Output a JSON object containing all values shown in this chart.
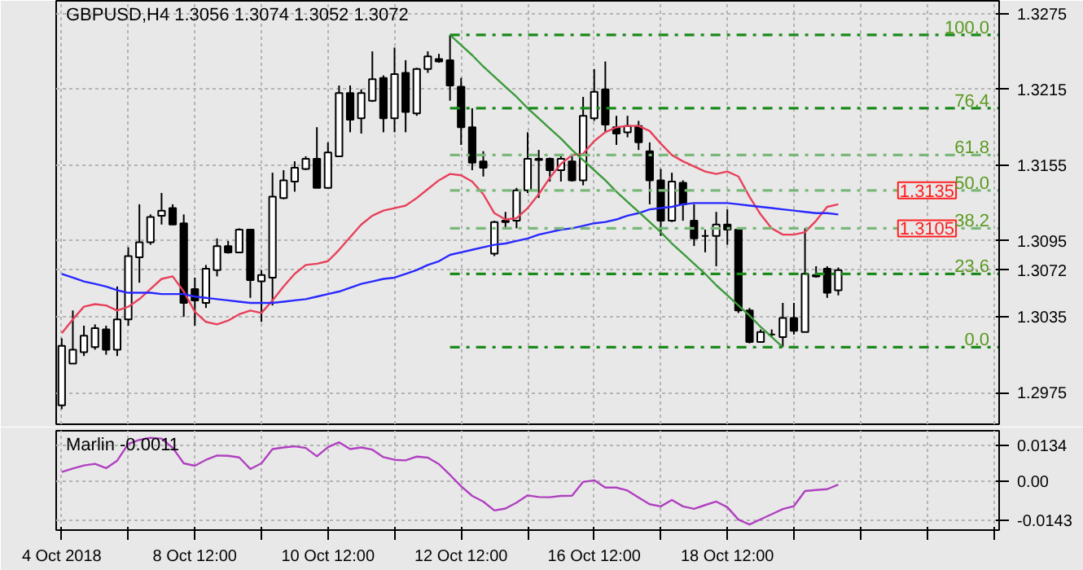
{
  "chart_data": [
    {
      "type": "candlestick",
      "title": "GBPUSD,H4  1.3056 1.3074 1.3052 1.3072",
      "categories": [
        "4 Oct 2018",
        null,
        null,
        null,
        null,
        null,
        null,
        null,
        null,
        null,
        null,
        null,
        "8 Oct 12:00",
        null,
        null,
        null,
        null,
        null,
        null,
        null,
        null,
        null,
        null,
        null,
        "10 Oct 12:00",
        null,
        null,
        null,
        null,
        null,
        null,
        null,
        null,
        null,
        null,
        null,
        "12 Oct 12:00",
        null,
        null,
        null,
        null,
        null,
        null,
        null,
        null,
        null,
        null,
        null,
        "16 Oct 12:00",
        null,
        null,
        null,
        null,
        null,
        null,
        null,
        null,
        null,
        null,
        null,
        "18 Oct 12:00",
        null,
        null,
        null,
        null,
        null,
        null,
        null,
        null,
        null,
        null,
        null,
        null,
        null,
        null,
        null,
        null,
        null,
        null,
        null,
        null,
        null,
        null,
        null,
        null
      ],
      "ohlc": [
        [
          1.2965,
          1.3018,
          1.2962,
          1.3012
        ],
        [
          1.2998,
          1.304,
          1.2998,
          1.3009
        ],
        [
          1.3007,
          1.3028,
          1.3004,
          1.302
        ],
        [
          1.3011,
          1.3029,
          1.3009,
          1.3026
        ],
        [
          1.3025,
          1.3028,
          1.3005,
          1.3009
        ],
        [
          1.3009,
          1.3059,
          1.3004,
          1.3033
        ],
        [
          1.3033,
          1.309,
          1.3028,
          1.3083
        ],
        [
          1.3082,
          1.3124,
          1.3062,
          1.3094
        ],
        [
          1.3094,
          1.3116,
          1.3092,
          1.3114
        ],
        [
          1.3115,
          1.3133,
          1.3108,
          1.3119
        ],
        [
          1.3121,
          1.3124,
          1.3108,
          1.3108
        ],
        [
          1.3109,
          1.3116,
          1.3035,
          1.3046
        ],
        [
          1.3057,
          1.3066,
          1.3028,
          1.3048
        ],
        [
          1.3046,
          1.3076,
          1.3042,
          1.3073
        ],
        [
          1.3072,
          1.3097,
          1.3067,
          1.3091
        ],
        [
          1.3091,
          1.3095,
          1.3085,
          1.3086
        ],
        [
          1.3086,
          1.3105,
          1.3086,
          1.3104
        ],
        [
          1.3104,
          1.3104,
          1.305,
          1.3064
        ],
        [
          1.3063,
          1.3072,
          1.3031,
          1.3068
        ],
        [
          1.3066,
          1.3149,
          1.3044,
          1.313
        ],
        [
          1.3129,
          1.3151,
          1.3128,
          1.3143
        ],
        [
          1.3142,
          1.3158,
          1.3134,
          1.3153
        ],
        [
          1.3152,
          1.3162,
          1.3151,
          1.316
        ],
        [
          1.316,
          1.3185,
          1.3137,
          1.3137
        ],
        [
          1.3137,
          1.3173,
          1.3137,
          1.3165
        ],
        [
          1.3162,
          1.3218,
          1.3162,
          1.3212
        ],
        [
          1.3212,
          1.3218,
          1.3181,
          1.3191
        ],
        [
          1.3192,
          1.3215,
          1.318,
          1.3212
        ],
        [
          1.3206,
          1.3245,
          1.3205,
          1.3223
        ],
        [
          1.3224,
          1.3226,
          1.3181,
          1.3192
        ],
        [
          1.3192,
          1.3248,
          1.3181,
          1.3227
        ],
        [
          1.3228,
          1.3238,
          1.3181,
          1.3197
        ],
        [
          1.3196,
          1.3232,
          1.3194,
          1.3231
        ],
        [
          1.3231,
          1.3245,
          1.3228,
          1.3241
        ],
        [
          1.3239,
          1.3243,
          1.3236,
          1.3237
        ],
        [
          1.3238,
          1.3258,
          1.3206,
          1.3218
        ],
        [
          1.3217,
          1.3224,
          1.3171,
          1.3185
        ],
        [
          1.3185,
          1.32,
          1.3151,
          1.3157
        ],
        [
          1.3158,
          1.3166,
          1.3146,
          1.3153
        ],
        [
          1.3085,
          1.3111,
          1.3083,
          1.311
        ],
        [
          1.311,
          1.3118,
          1.3104,
          1.3111
        ],
        [
          1.3111,
          1.3137,
          1.3105,
          1.3135
        ],
        [
          1.3135,
          1.3181,
          1.3133,
          1.316
        ],
        [
          1.3159,
          1.3167,
          1.3129,
          1.316
        ],
        [
          1.316,
          1.3161,
          1.3142,
          1.3151
        ],
        [
          1.3151,
          1.3162,
          1.3142,
          1.316
        ],
        [
          1.3158,
          1.3162,
          1.3142,
          1.3143
        ],
        [
          1.3143,
          1.3209,
          1.3139,
          1.3194
        ],
        [
          1.3192,
          1.3231,
          1.319,
          1.3213
        ],
        [
          1.3215,
          1.3237,
          1.3181,
          1.3187
        ],
        [
          1.3185,
          1.3194,
          1.3171,
          1.318
        ],
        [
          1.3181,
          1.3194,
          1.3177,
          1.3186
        ],
        [
          1.3186,
          1.319,
          1.3167,
          1.3173
        ],
        [
          1.3166,
          1.3173,
          1.3124,
          1.3143
        ],
        [
          1.3143,
          1.3152,
          1.3099,
          1.3111
        ],
        [
          1.3111,
          1.3149,
          1.311,
          1.3142
        ],
        [
          1.3141,
          1.3143,
          1.3111,
          1.3124
        ],
        [
          1.3111,
          1.3124,
          1.3091,
          1.3097
        ],
        [
          1.3099,
          1.3104,
          1.3086,
          1.3099
        ],
        [
          1.3099,
          1.3118,
          1.3075,
          1.3108
        ],
        [
          1.3108,
          1.312,
          1.3092,
          1.3104
        ],
        [
          1.3104,
          1.3105,
          1.3038,
          1.304
        ],
        [
          1.304,
          1.3042,
          1.3014,
          1.3015
        ],
        [
          1.3015,
          1.3025,
          1.3015,
          1.3023
        ],
        [
          1.3021,
          1.3025,
          1.3019,
          1.3021
        ],
        [
          1.3019,
          1.3046,
          1.3011,
          1.3034
        ],
        [
          1.3034,
          1.3046,
          1.3021,
          1.3024
        ],
        [
          1.3023,
          1.3105,
          1.3023,
          1.3069
        ],
        [
          1.3067,
          1.3075,
          1.3066,
          1.3068
        ],
        [
          1.3073,
          1.3075,
          1.305,
          1.3054
        ],
        [
          1.3056,
          1.3074,
          1.3052,
          1.3072
        ],
        null,
        null,
        null,
        null,
        null,
        null,
        null,
        null,
        null,
        null,
        null,
        null,
        null,
        null
      ],
      "series": [
        {
          "type": "line",
          "color": "#e8405a",
          "values": [
            1.3022,
            1.3033,
            1.3043,
            1.3045,
            1.3044,
            1.304,
            1.3043,
            1.3049,
            1.3057,
            1.3065,
            1.3067,
            1.3055,
            1.3039,
            1.3031,
            1.3029,
            1.3032,
            1.3037,
            1.304,
            1.3038,
            1.3048,
            1.3059,
            1.3069,
            1.3076,
            1.3077,
            1.3079,
            1.3088,
            1.3098,
            1.3108,
            1.3115,
            1.3119,
            1.3121,
            1.3123,
            1.3129,
            1.3136,
            1.3143,
            1.3148,
            1.3147,
            1.3142,
            1.3132,
            1.3117,
            1.3112,
            1.3113,
            1.3121,
            1.3132,
            1.3145,
            1.3156,
            1.3163,
            1.3164,
            1.3174,
            1.3181,
            1.3185,
            1.3186,
            1.3186,
            1.3182,
            1.3172,
            1.3163,
            1.3158,
            1.3154,
            1.315,
            1.3148,
            1.315,
            1.3146,
            1.313,
            1.3116,
            1.3105,
            1.31,
            1.31,
            1.3102,
            1.3111,
            1.3122,
            1.3124,
            null,
            null,
            null,
            null,
            null,
            null,
            null,
            null,
            null,
            null,
            null,
            null,
            null,
            null
          ]
        },
        {
          "type": "line",
          "color": "#2828ff",
          "values": [
            1.3069,
            1.3066,
            1.3063,
            1.3061,
            1.3059,
            1.3056,
            1.3054,
            1.3054,
            1.3054,
            1.3053,
            1.3053,
            1.3053,
            1.3051,
            1.305,
            1.3049,
            1.3048,
            1.3047,
            1.3046,
            1.3046,
            1.3046,
            1.3047,
            1.3048,
            1.3049,
            1.3051,
            1.3053,
            1.3055,
            1.3058,
            1.3061,
            1.3063,
            1.3065,
            1.3066,
            1.3069,
            1.3072,
            1.3076,
            1.3079,
            1.3084,
            1.3086,
            1.3088,
            1.309,
            1.3092,
            1.3093,
            1.3095,
            1.3097,
            1.31,
            1.3102,
            1.3104,
            1.3105,
            1.3107,
            1.3109,
            1.311,
            1.3112,
            1.3115,
            1.3117,
            1.312,
            1.3121,
            1.3122,
            1.3124,
            1.3125,
            1.3125,
            1.3125,
            1.3125,
            1.3124,
            1.3123,
            1.3122,
            1.3121,
            1.312,
            1.3119,
            1.3118,
            1.3117,
            1.3117,
            1.3116,
            null,
            null,
            null,
            null,
            null,
            null,
            null,
            null,
            null,
            null,
            null,
            null,
            null,
            null
          ]
        },
        {
          "type": "line",
          "color": "#3c9a3c",
          "values": [
            null,
            null,
            null,
            null,
            null,
            null,
            null,
            null,
            null,
            null,
            null,
            null,
            null,
            null,
            null,
            null,
            null,
            null,
            null,
            null,
            null,
            null,
            null,
            null,
            null,
            null,
            null,
            null,
            null,
            null,
            null,
            null,
            null,
            null,
            null,
            1.3258,
            1.325,
            1.3242,
            1.3233,
            1.3225,
            1.3217,
            1.3209,
            1.32,
            1.3192,
            1.3184,
            1.3176,
            1.3167,
            1.3159,
            1.3151,
            1.3143,
            1.3134,
            1.3126,
            1.3118,
            1.311,
            1.3102,
            1.3093,
            1.3085,
            1.3077,
            1.3069,
            1.306,
            1.3052,
            1.3044,
            1.3036,
            1.3027,
            1.3019,
            1.3011,
            null,
            null,
            null,
            null,
            null,
            null,
            null,
            null,
            null,
            null,
            null,
            null,
            null,
            null,
            null,
            null,
            null,
            null,
            null
          ]
        }
      ],
      "ylim": [
        1.295,
        1.3285
      ],
      "yticks": [
        1.2975,
        1.3035,
        {
          "value": 1.3072,
          "label": "1.3072"
        },
        1.3095,
        1.3155,
        1.3215,
        1.3275
      ],
      "tick_labels": "y",
      "grid": true,
      "ref_lines": [
        {
          "axis": "y",
          "value": 1.3258,
          "color": "#1a8a1a",
          "line_style": "dashdot"
        },
        {
          "axis": "y",
          "value": 1.32,
          "color": "#1a8a1a",
          "line_style": "dashdot"
        },
        {
          "axis": "y",
          "value": 1.3163,
          "color": "#7ab87a",
          "line_style": "dashdot"
        },
        {
          "axis": "y",
          "value": 1.3135,
          "label": "1.3135",
          "color": "#7ab87a",
          "line_style": "dashdot"
        },
        {
          "axis": "y",
          "value": 1.3105,
          "label": "1.3105",
          "color": "#7ab87a",
          "line_style": "dashdot"
        },
        {
          "axis": "y",
          "value": 1.3069,
          "color": "#1a8a1a",
          "line_style": "dashdot"
        },
        {
          "axis": "y",
          "value": 1.3011,
          "color": "#1a8a1a",
          "line_style": "dashdot"
        }
      ],
      "annotations": [
        {
          "text": "100.0",
          "y": 1.3258
        },
        {
          "text": "76.4",
          "y": 1.32
        },
        {
          "text": "61.8",
          "y": 1.3163
        },
        {
          "text": "50.0",
          "y": 1.3135
        },
        {
          "text": "38.2",
          "y": 1.3105
        },
        {
          "text": "23.6",
          "y": 1.3069
        },
        {
          "text": "0.0",
          "y": 1.3011
        }
      ]
    },
    {
      "type": "line",
      "title": "Marlin -0.0011",
      "categories": [
        "4 Oct 2018",
        null,
        null,
        null,
        null,
        null,
        null,
        null,
        null,
        null,
        null,
        null,
        "8 Oct 12:00",
        null,
        null,
        null,
        null,
        null,
        null,
        null,
        null,
        null,
        null,
        null,
        "10 Oct 12:00",
        null,
        null,
        null,
        null,
        null,
        null,
        null,
        null,
        null,
        null,
        null,
        "12 Oct 12:00",
        null,
        null,
        null,
        null,
        null,
        null,
        null,
        null,
        null,
        null,
        null,
        "16 Oct 12:00",
        null,
        null,
        null,
        null,
        null,
        null,
        null,
        null,
        null,
        null,
        null,
        "18 Oct 12:00",
        null,
        null,
        null,
        null,
        null,
        null,
        null,
        null,
        null,
        null,
        null,
        null,
        null,
        null,
        null,
        null,
        null,
        null,
        null,
        null,
        null,
        null,
        null,
        null
      ],
      "series": [
        {
          "color": "#b040c0",
          "values": [
            0.0036,
            0.0049,
            0.006,
            0.0066,
            0.005,
            0.0078,
            0.014,
            0.0155,
            0.0163,
            0.016,
            0.0126,
            0.0068,
            0.0059,
            0.0081,
            0.0097,
            0.0096,
            0.009,
            0.0047,
            0.0068,
            0.0121,
            0.0127,
            0.0131,
            0.0125,
            0.0094,
            0.0128,
            0.0146,
            0.0121,
            0.0127,
            0.0119,
            0.0091,
            0.0081,
            0.0079,
            0.0093,
            0.0089,
            0.0065,
            0.0025,
            -0.0017,
            -0.0053,
            -0.0074,
            -0.0107,
            -0.01,
            -0.0078,
            -0.0051,
            -0.0057,
            -0.0058,
            -0.0053,
            -0.0052,
            -0.0001,
            0.0005,
            -0.0022,
            -0.0022,
            -0.0033,
            -0.0059,
            -0.0084,
            -0.0092,
            -0.0068,
            -0.0092,
            -0.0101,
            -0.0087,
            -0.0074,
            -0.0095,
            -0.0141,
            -0.0159,
            -0.014,
            -0.0121,
            -0.0102,
            -0.0091,
            -0.0035,
            -0.0031,
            -0.0028,
            -0.0011,
            null,
            null,
            null,
            null,
            null,
            null,
            null,
            null,
            null,
            null,
            null,
            null,
            null,
            null
          ]
        }
      ],
      "ylim": [
        -0.018,
        0.0189
      ],
      "yticks": [
        -0.0143,
        {
          "value": 0,
          "label": "0.00"
        },
        0.0134
      ],
      "grid": true
    }
  ]
}
